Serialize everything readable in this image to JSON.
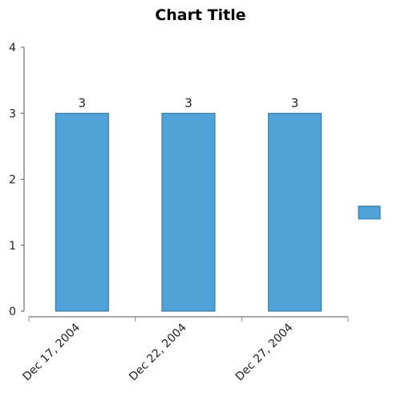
{
  "chart_data": {
    "type": "bar",
    "title": "Chart Title",
    "categories": [
      "Dec 17, 2004",
      "Dec 22, 2004",
      "Dec 27, 2004"
    ],
    "series": [
      {
        "values": [
          3,
          3,
          3
        ],
        "color": "#4fa3d9"
      }
    ],
    "data_labels": [
      "3",
      "3",
      "3"
    ],
    "ylim": [
      0,
      4
    ],
    "yticks": [
      "0",
      "1",
      "2",
      "3",
      "4"
    ],
    "grid": false,
    "legend": "right",
    "xlabel": "",
    "ylabel": ""
  }
}
